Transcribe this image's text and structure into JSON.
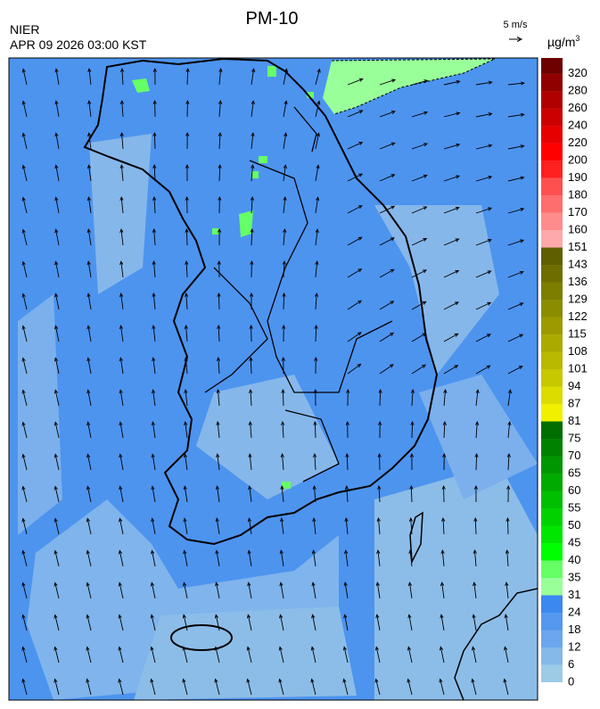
{
  "header": {
    "title": "PM-10",
    "agency": "NIER",
    "time": "APR 09 2026 03:00 KST",
    "wind_scale": "5 m/s"
  },
  "legend": {
    "unit": "µg/m",
    "unit_sup": "3",
    "levels": [
      {
        "value": 0,
        "color": "#9dcbe6"
      },
      {
        "value": 6,
        "color": "#85b9ea"
      },
      {
        "value": 12,
        "color": "#6ba6ee"
      },
      {
        "value": 18,
        "color": "#5598f0"
      },
      {
        "value": 24,
        "color": "#3a88f0"
      },
      {
        "value": 31,
        "color": "#99ff99"
      },
      {
        "value": 35,
        "color": "#66ff66"
      },
      {
        "value": 40,
        "color": "#00ff00"
      },
      {
        "value": 45,
        "color": "#00e600"
      },
      {
        "value": 50,
        "color": "#00d200"
      },
      {
        "value": 55,
        "color": "#00be00"
      },
      {
        "value": 60,
        "color": "#00aa00"
      },
      {
        "value": 65,
        "color": "#009600"
      },
      {
        "value": 70,
        "color": "#008200"
      },
      {
        "value": 75,
        "color": "#006e00"
      },
      {
        "value": 81,
        "color": "#f0f000"
      },
      {
        "value": 87,
        "color": "#dcdc00"
      },
      {
        "value": 94,
        "color": "#c8c800"
      },
      {
        "value": 101,
        "color": "#b9b900"
      },
      {
        "value": 108,
        "color": "#aaaa00"
      },
      {
        "value": 115,
        "color": "#9b9b00"
      },
      {
        "value": 122,
        "color": "#8c8c00"
      },
      {
        "value": 129,
        "color": "#7d7d00"
      },
      {
        "value": 136,
        "color": "#6e6e00"
      },
      {
        "value": 143,
        "color": "#5f5f00"
      },
      {
        "value": 151,
        "color": "#ffaaaa"
      },
      {
        "value": 160,
        "color": "#ff8c8c"
      },
      {
        "value": 170,
        "color": "#ff6e6e"
      },
      {
        "value": 180,
        "color": "#ff5050"
      },
      {
        "value": 190,
        "color": "#ff2020"
      },
      {
        "value": 200,
        "color": "#ff0000"
      },
      {
        "value": 220,
        "color": "#e60000"
      },
      {
        "value": 240,
        "color": "#cc0000"
      },
      {
        "value": 260,
        "color": "#b00000"
      },
      {
        "value": 280,
        "color": "#900000"
      },
      {
        "value": 320,
        "color": "#6e0000"
      }
    ]
  }
}
